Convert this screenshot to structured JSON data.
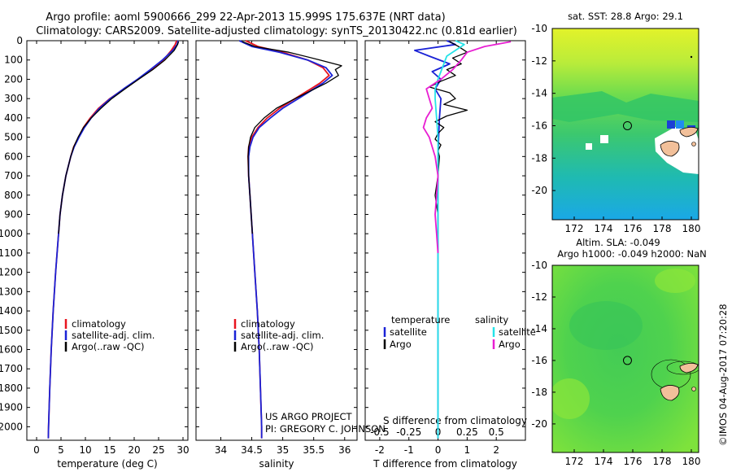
{
  "header": {
    "title_line1": "Argo profile: aoml 5900666_299 22-Apr-2013 15.999S 175.637E (NRT data)",
    "title_line2": "Climatology: CARS2009. Satellite-adjusted climatology: synTS_20130422.nc (0.81d earlier)"
  },
  "colors": {
    "climatology": "#e8141e",
    "satellite": "#1a22d6",
    "argo": "#000000",
    "satellite_salinity": "#25e3e8",
    "argo_salinity": "#e81ed2"
  },
  "chart_data": [
    {
      "type": "line",
      "panel": "temperature",
      "xlabel": "temperature (deg C)",
      "ylabel": "",
      "xlim": [
        -2,
        31
      ],
      "ylim": [
        2070,
        0
      ],
      "x_ticks": [
        "0",
        "5",
        "10",
        "15",
        "20",
        "25",
        "30"
      ],
      "y_ticks": [
        "0",
        "100",
        "200",
        "300",
        "400",
        "500",
        "600",
        "700",
        "800",
        "900",
        "1000",
        "1100",
        "1200",
        "1300",
        "1400",
        "1500",
        "1600",
        "1700",
        "1800",
        "1900",
        "2000"
      ],
      "legend": [
        "climatology",
        "satellite-adj. clim.",
        "Argo(..raw -QC)"
      ],
      "legend_position": "lower-middle",
      "series": [
        {
          "name": "climatology",
          "color": "#e8141e",
          "depth": [
            0,
            20,
            50,
            100,
            150,
            200,
            250,
            300,
            350,
            400,
            450,
            500,
            550,
            600,
            700,
            800,
            900,
            1000,
            1200,
            1400,
            1600,
            1800,
            2000,
            2060
          ],
          "values": [
            28.7,
            28.4,
            27.6,
            26.0,
            23.6,
            20.8,
            17.9,
            15.0,
            12.7,
            11.0,
            9.6,
            8.6,
            7.6,
            7.0,
            6.0,
            5.3,
            4.8,
            4.5,
            3.9,
            3.4,
            3.0,
            2.7,
            2.45,
            2.4
          ]
        },
        {
          "name": "satellite-adj. clim.",
          "color": "#1a22d6",
          "depth": [
            0,
            20,
            50,
            100,
            150,
            200,
            250,
            300,
            350,
            400,
            450,
            500,
            550,
            600,
            700,
            800,
            900,
            1000,
            1200,
            1400,
            1600,
            1800,
            2000,
            2060
          ],
          "values": [
            29.0,
            28.8,
            27.9,
            25.8,
            23.3,
            20.7,
            17.8,
            15.1,
            12.9,
            11.2,
            9.8,
            8.7,
            7.7,
            7.0,
            6.0,
            5.3,
            4.8,
            4.5,
            3.9,
            3.4,
            3.0,
            2.7,
            2.45,
            2.4
          ]
        },
        {
          "name": "Argo(..raw -QC)",
          "color": "#000000",
          "depth": [
            5,
            20,
            50,
            100,
            150,
            200,
            250,
            300,
            350,
            400,
            450,
            500,
            550,
            600,
            700,
            800,
            900,
            1000
          ],
          "values": [
            29.1,
            28.9,
            28.2,
            26.3,
            23.8,
            20.9,
            18.1,
            15.4,
            13.2,
            11.2,
            9.6,
            8.5,
            7.6,
            7.0,
            6.0,
            5.3,
            4.8,
            4.5
          ]
        }
      ]
    },
    {
      "type": "line",
      "panel": "salinity",
      "xlabel": "salinity",
      "ylabel": "",
      "xlim": [
        33.6,
        36.2
      ],
      "ylim": [
        2070,
        0
      ],
      "x_ticks": [
        "34",
        "34.5",
        "35",
        "35.5",
        "36"
      ],
      "legend": [
        "climatology",
        "satellite-adj. clim.",
        "Argo(..raw -QC)"
      ],
      "legend_position": "lower-middle",
      "series": [
        {
          "name": "climatology",
          "color": "#e8141e",
          "depth": [
            0,
            30,
            60,
            100,
            140,
            180,
            220,
            260,
            300,
            350,
            400,
            450,
            500,
            550,
            600,
            700,
            800,
            900,
            1000,
            1200,
            1400,
            1600,
            1800,
            2000,
            2060
          ],
          "values": [
            34.4,
            34.6,
            35.0,
            35.4,
            35.65,
            35.75,
            35.6,
            35.4,
            35.2,
            34.95,
            34.75,
            34.6,
            34.5,
            34.45,
            34.44,
            34.45,
            34.47,
            34.49,
            34.51,
            34.55,
            34.59,
            34.62,
            34.64,
            34.66,
            34.66
          ]
        },
        {
          "name": "satellite-adj. clim.",
          "color": "#1a22d6",
          "depth": [
            0,
            30,
            60,
            100,
            140,
            180,
            220,
            260,
            300,
            350,
            400,
            450,
            500,
            550,
            600,
            700,
            800,
            900,
            1000,
            1200,
            1400,
            1600,
            1800,
            2000,
            2060
          ],
          "values": [
            34.3,
            34.5,
            34.95,
            35.4,
            35.7,
            35.8,
            35.65,
            35.45,
            35.25,
            35.0,
            34.8,
            34.62,
            34.52,
            34.47,
            34.45,
            34.45,
            34.47,
            34.49,
            34.51,
            34.55,
            34.59,
            34.62,
            34.64,
            34.66,
            34.66
          ]
        },
        {
          "name": "Argo(..raw -QC)",
          "color": "#000000",
          "depth": [
            5,
            30,
            60,
            100,
            130,
            150,
            180,
            220,
            260,
            300,
            350,
            400,
            450,
            500,
            550,
            600,
            700,
            800,
            900,
            1000
          ],
          "values": [
            34.35,
            34.55,
            35.1,
            35.6,
            35.95,
            35.85,
            35.9,
            35.7,
            35.45,
            35.2,
            34.9,
            34.7,
            34.55,
            34.48,
            34.45,
            34.44,
            34.45,
            34.47,
            34.49,
            34.51
          ]
        }
      ]
    },
    {
      "type": "line",
      "panel": "difference",
      "xlabel": "T difference from climatology",
      "xlabel_top": "S difference from climatology",
      "xlim": [
        -2.5,
        3.0
      ],
      "ylim": [
        2070,
        0
      ],
      "x_ticks": [
        "-2",
        "-1",
        "0",
        "1",
        "2"
      ],
      "x_ticks_top": [
        "-0.5",
        "-0.25",
        "0",
        "0.25",
        "0.5"
      ],
      "legend_titles": [
        "temperature",
        "salinity"
      ],
      "legend": [
        "satellite",
        "Argo",
        "satellite",
        "Argo"
      ],
      "legend_position": "upper-middle",
      "series": [
        {
          "name": "satellite",
          "group": "temperature",
          "color": "#1a22d6",
          "depth": [
            0,
            20,
            50,
            80,
            120,
            160,
            200,
            250,
            300,
            400,
            500,
            600,
            800,
            1000,
            1500,
            2060
          ],
          "values": [
            0.3,
            0.6,
            -0.8,
            -0.3,
            0.4,
            -0.2,
            0.1,
            -0.1,
            0.1,
            0.05,
            0.02,
            0.0,
            0.0,
            0.0,
            0.0,
            0.0
          ]
        },
        {
          "name": "Argo",
          "group": "temperature",
          "color": "#000000",
          "depth": [
            5,
            30,
            60,
            90,
            120,
            150,
            180,
            210,
            240,
            270,
            300,
            330,
            360,
            390,
            420,
            450,
            480,
            510,
            540,
            570,
            600,
            700,
            800,
            900,
            1000
          ],
          "values": [
            0.4,
            0.7,
            1.0,
            0.5,
            0.8,
            0.3,
            0.6,
            0.1,
            -0.3,
            0.4,
            0.6,
            0.2,
            1.0,
            0.3,
            -0.1,
            0.2,
            0.0,
            -0.1,
            0.1,
            0.0,
            0.05,
            0.0,
            -0.1,
            0.0,
            0.0
          ]
        },
        {
          "name": "satellite",
          "group": "salinity",
          "color": "#25e3e8",
          "depth": [
            0,
            20,
            50,
            80,
            120,
            160,
            200,
            250,
            300,
            400,
            500,
            600,
            800,
            1000,
            1500,
            2060
          ],
          "values": [
            0.6,
            0.9,
            0.6,
            0.3,
            0.2,
            0.1,
            0.0,
            -0.1,
            -0.1,
            -0.05,
            0.0,
            0.0,
            0.0,
            0.0,
            0.0,
            0.0
          ]
        },
        {
          "name": "Argo",
          "group": "salinity",
          "color": "#e81ed2",
          "depth": [
            5,
            30,
            60,
            100,
            150,
            200,
            250,
            300,
            350,
            400,
            450,
            500,
            550,
            600,
            700,
            800,
            900,
            1000,
            1100
          ],
          "values": [
            2.5,
            1.6,
            1.0,
            0.8,
            0.5,
            0.1,
            -0.4,
            -0.3,
            -0.2,
            -0.4,
            -0.5,
            -0.3,
            -0.2,
            -0.1,
            0.0,
            -0.05,
            -0.1,
            -0.05,
            0.0
          ]
        }
      ]
    }
  ],
  "maps": {
    "sst": {
      "title": "sat. SST: 28.8 Argo: 29.1",
      "lon_ticks": [
        "172",
        "174",
        "176",
        "178",
        "180"
      ],
      "lat_ticks": [
        "-10",
        "-12",
        "-14",
        "-16",
        "-18",
        "-20"
      ],
      "lon_range": [
        170.5,
        180.5
      ],
      "lat_range": [
        -21.8,
        -10
      ],
      "float_position": [
        175.637,
        -15.999
      ]
    },
    "sla": {
      "title_line1": "Altim. SLA: -0.049",
      "title_line2": "Argo h1000: -0.049 h2000: NaN",
      "lon_ticks": [
        "172",
        "174",
        "176",
        "178",
        "180"
      ],
      "lat_ticks": [
        "-10",
        "-12",
        "-14",
        "-16",
        "-18",
        "-20"
      ],
      "lon_range": [
        170.5,
        180.5
      ],
      "lat_range": [
        -21.8,
        -10
      ],
      "float_position": [
        175.637,
        -15.999
      ]
    }
  },
  "annotations": {
    "project": "US ARGO PROJECT",
    "pi": "PI: GREGORY C. JOHNSON",
    "credit": "©IMOS 04-Aug-2017 07:20:28"
  }
}
